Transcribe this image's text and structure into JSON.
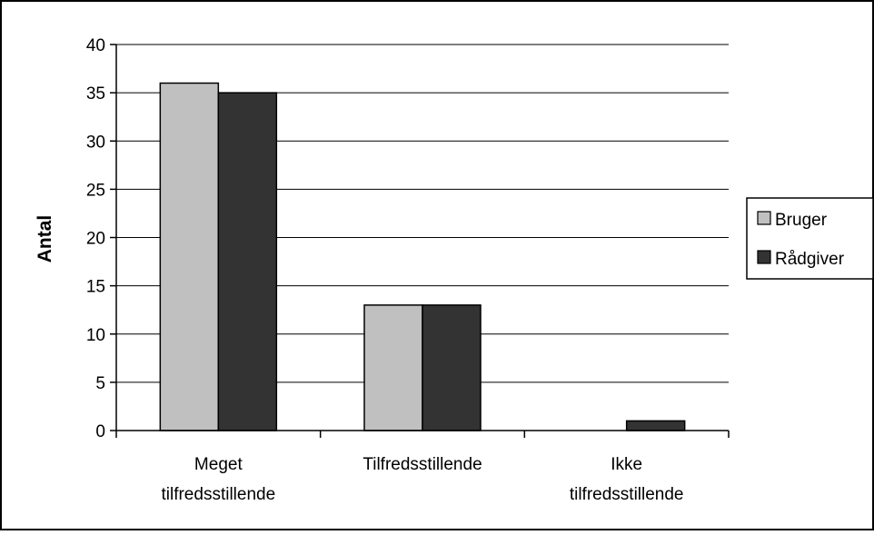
{
  "chart_data": {
    "type": "bar",
    "categories": [
      "Meget tilfredsstillende",
      "Tilfredsstillende",
      "Ikke tilfredsstillende"
    ],
    "category_lines": [
      [
        "Meget",
        "tilfredsstillende"
      ],
      [
        "Tilfredsstillende"
      ],
      [
        "Ikke",
        "tilfredsstillende"
      ]
    ],
    "series": [
      {
        "name": "Bruger",
        "values": [
          36,
          13,
          0
        ],
        "color": "#c0c0c0"
      },
      {
        "name": "Rådgiver",
        "values": [
          35,
          13,
          1
        ],
        "color": "#333333"
      }
    ],
    "title": "",
    "xlabel": "",
    "ylabel": "Antal",
    "ylim": [
      0,
      40
    ],
    "yticks": [
      0,
      5,
      10,
      15,
      20,
      25,
      30,
      35,
      40
    ],
    "grid": true,
    "legend": "right"
  }
}
